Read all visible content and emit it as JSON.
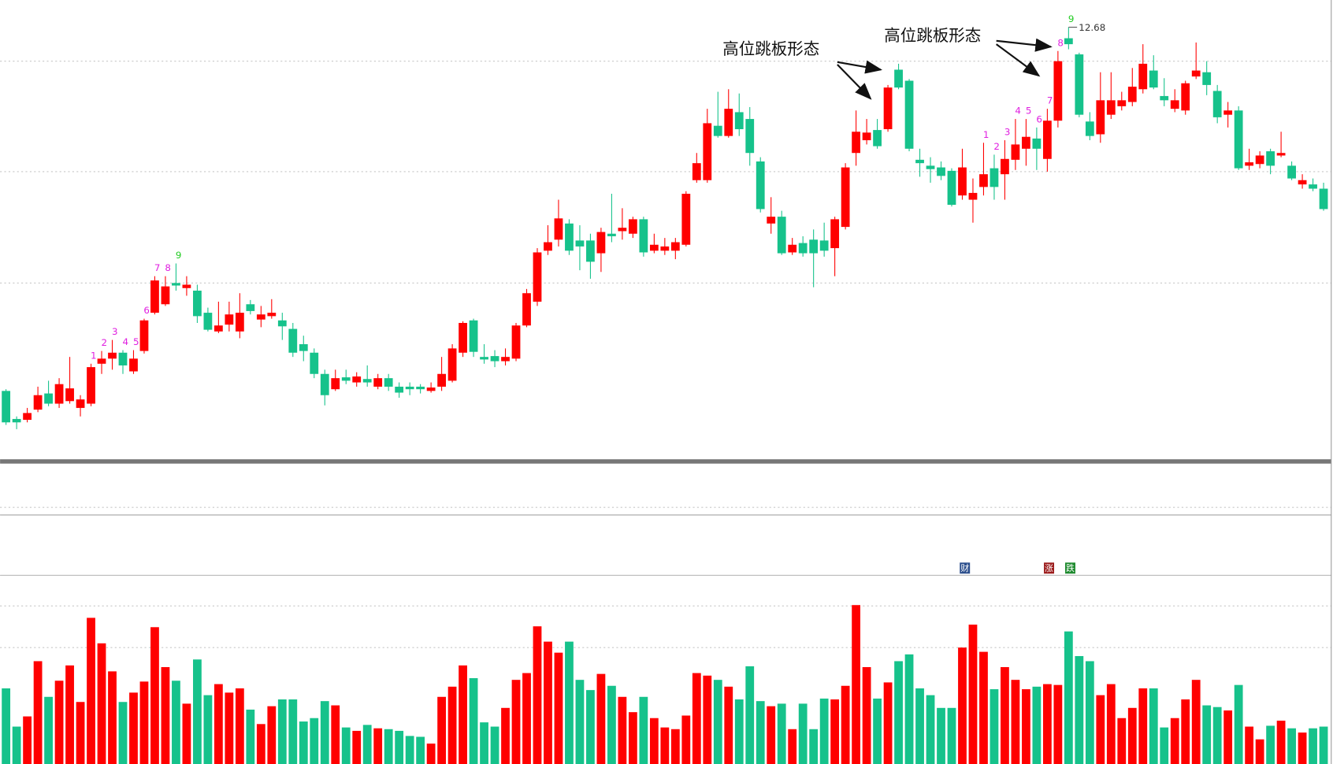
{
  "chart_data": {
    "type": "candlestick",
    "up_color": "#ff0000",
    "down_color": "#16c28b",
    "countdown_color": "#e020e0",
    "countdown_final_color": "#22cc22",
    "ylim": [
      7.5,
      13.0
    ],
    "volume_ylim": [
      0,
      200
    ],
    "annotations": [
      "高位跳板形态",
      "高位跳板形态"
    ],
    "markers": [
      "财",
      "涨",
      "跌"
    ],
    "candles": {
      "open": [
        8.4,
        8.07,
        8.06,
        8.18,
        8.37,
        8.25,
        8.28,
        8.2,
        8.25,
        8.72,
        8.78,
        8.85,
        8.63,
        8.87,
        9.32,
        9.42,
        9.67,
        9.61,
        9.58,
        9.32,
        9.1,
        9.18,
        9.1,
        9.42,
        9.24,
        9.28,
        9.23,
        9.13,
        8.95,
        8.85,
        8.6,
        8.42,
        8.56,
        8.5,
        8.54,
        8.45,
        8.55,
        8.45,
        8.45,
        8.45,
        8.4,
        8.45,
        8.52,
        8.85,
        9.23,
        8.8,
        8.81,
        8.75,
        8.78,
        9.17,
        9.45,
        10.05,
        10.18,
        10.37,
        10.17,
        10.17,
        10.02,
        10.25,
        10.28,
        10.25,
        10.42,
        10.05,
        10.05,
        10.05,
        10.12,
        10.88,
        10.88,
        11.52,
        11.4,
        11.68,
        11.6,
        11.1,
        10.37,
        10.45,
        10.03,
        10.14,
        10.18,
        10.17,
        10.08,
        10.33,
        11.2,
        11.35,
        11.47,
        11.48,
        12.18,
        12.05,
        11.12,
        11.05,
        11.03,
        10.99,
        10.7,
        10.65,
        10.8,
        11.02,
        10.95,
        11.12,
        11.25,
        11.37,
        11.13,
        11.58,
        12.55,
        12.36,
        11.57,
        11.42,
        11.65,
        11.75,
        11.8,
        11.95,
        12.17,
        11.87,
        11.72,
        11.7,
        12.1,
        12.15,
        11.93,
        11.65,
        11.7,
        11.05,
        11.07,
        11.22,
        11.17,
        11.05,
        10.83,
        10.83,
        10.78
      ],
      "high": [
        8.42,
        8.1,
        8.2,
        8.45,
        8.52,
        8.55,
        8.8,
        8.35,
        8.72,
        8.87,
        9.0,
        8.88,
        8.88,
        9.25,
        9.75,
        9.75,
        9.9,
        9.75,
        9.65,
        9.38,
        9.45,
        9.45,
        9.55,
        9.47,
        9.4,
        9.48,
        9.32,
        9.2,
        9.05,
        8.9,
        8.65,
        8.65,
        8.65,
        8.62,
        8.7,
        8.6,
        8.6,
        8.5,
        8.5,
        8.48,
        8.5,
        8.8,
        8.95,
        9.22,
        9.25,
        8.95,
        8.88,
        8.9,
        9.2,
        9.6,
        10.08,
        10.35,
        10.65,
        10.42,
        10.35,
        10.25,
        10.32,
        10.72,
        10.55,
        10.45,
        10.45,
        10.25,
        10.2,
        10.2,
        10.75,
        11.2,
        11.72,
        11.92,
        11.95,
        11.9,
        11.74,
        11.15,
        10.68,
        10.52,
        10.2,
        10.22,
        10.3,
        10.38,
        10.45,
        11.08,
        11.7,
        11.6,
        11.6,
        12.0,
        12.25,
        12.07,
        11.25,
        11.15,
        11.1,
        11.02,
        11.25,
        10.9,
        11.32,
        11.18,
        11.35,
        11.6,
        11.6,
        11.5,
        11.72,
        12.4,
        12.68,
        12.38,
        11.68,
        12.15,
        12.15,
        11.92,
        12.2,
        12.48,
        12.35,
        12.08,
        11.95,
        12.05,
        12.5,
        12.28,
        12.0,
        11.8,
        11.75,
        11.25,
        11.22,
        11.25,
        11.45,
        11.1,
        10.95,
        10.9,
        10.85
      ],
      "low": [
        8.0,
        7.95,
        8.03,
        8.15,
        8.22,
        8.2,
        8.25,
        8.1,
        8.22,
        8.6,
        8.65,
        8.6,
        8.6,
        8.84,
        9.3,
        9.4,
        9.58,
        9.52,
        9.2,
        9.1,
        9.08,
        9.1,
        9.02,
        9.3,
        9.15,
        9.25,
        9.0,
        8.8,
        8.75,
        8.55,
        8.23,
        8.4,
        8.48,
        8.45,
        8.45,
        8.42,
        8.4,
        8.32,
        8.35,
        8.37,
        8.38,
        8.4,
        8.5,
        8.8,
        8.8,
        8.72,
        8.68,
        8.7,
        8.75,
        9.15,
        9.4,
        10.0,
        10.1,
        10.0,
        9.82,
        9.72,
        9.8,
        10.15,
        10.18,
        10.2,
        9.98,
        10.02,
        10.0,
        9.95,
        10.1,
        10.85,
        10.85,
        11.38,
        11.38,
        11.4,
        11.05,
        10.5,
        10.25,
        10.0,
        10.0,
        9.98,
        9.62,
        9.98,
        9.75,
        10.3,
        11.05,
        11.3,
        11.25,
        11.45,
        11.95,
        11.22,
        10.92,
        10.85,
        10.88,
        10.57,
        10.65,
        10.38,
        10.7,
        10.65,
        10.65,
        11.0,
        11.05,
        11.0,
        10.98,
        11.5,
        12.42,
        11.62,
        11.35,
        11.32,
        11.6,
        11.7,
        11.75,
        11.9,
        11.95,
        11.75,
        11.68,
        11.65,
        12.07,
        11.88,
        11.55,
        11.5,
        11.0,
        11.0,
        11.02,
        10.95,
        11.15,
        10.88,
        10.78,
        10.75,
        10.52
      ],
      "close": [
        8.03,
        8.03,
        8.14,
        8.35,
        8.25,
        8.48,
        8.43,
        8.3,
        8.68,
        8.78,
        8.85,
        8.7,
        8.78,
        9.23,
        9.7,
        9.63,
        9.64,
        9.65,
        9.28,
        9.12,
        9.17,
        9.3,
        9.32,
        9.34,
        9.3,
        9.32,
        9.16,
        8.85,
        8.87,
        8.6,
        8.35,
        8.55,
        8.52,
        8.57,
        8.5,
        8.55,
        8.45,
        8.38,
        8.42,
        8.42,
        8.44,
        8.6,
        8.9,
        9.2,
        8.86,
        8.77,
        8.75,
        8.8,
        9.17,
        9.55,
        10.03,
        10.15,
        10.43,
        10.05,
        10.1,
        9.92,
        10.27,
        10.22,
        10.32,
        10.42,
        10.03,
        10.12,
        10.1,
        10.15,
        10.72,
        11.08,
        11.55,
        11.4,
        11.72,
        11.48,
        11.2,
        10.54,
        10.45,
        10.02,
        10.12,
        10.02,
        10.02,
        10.05,
        10.42,
        11.03,
        11.45,
        11.44,
        11.28,
        11.97,
        11.97,
        11.25,
        11.08,
        11.01,
        10.93,
        10.59,
        11.03,
        10.73,
        10.95,
        10.8,
        11.13,
        11.3,
        11.39,
        11.25,
        11.58,
        12.28,
        12.48,
        11.65,
        11.4,
        11.82,
        11.82,
        11.82,
        11.98,
        12.25,
        11.97,
        11.82,
        11.82,
        12.02,
        12.17,
        12.0,
        11.62,
        11.7,
        11.02,
        11.09,
        11.17,
        11.05,
        11.2,
        10.9,
        10.88,
        10.78,
        10.54
      ]
    },
    "volume": [
      89,
      44,
      56,
      121,
      79,
      98,
      116,
      73,
      172,
      142,
      109,
      73,
      84,
      97,
      161,
      114,
      98,
      71,
      123,
      81,
      94,
      84,
      89,
      64,
      47,
      68,
      76,
      76,
      50,
      54,
      74,
      69,
      43,
      39,
      46,
      42,
      41,
      39,
      33,
      32,
      24,
      79,
      91,
      116,
      101,
      49,
      44,
      66,
      99,
      107,
      162,
      144,
      131,
      144,
      99,
      87,
      106,
      92,
      79,
      61,
      79,
      54,
      43,
      41,
      57,
      107,
      104,
      99,
      91,
      76,
      115,
      74,
      68,
      71,
      41,
      71,
      41,
      77,
      76,
      92,
      187,
      114,
      77,
      96,
      121,
      129,
      89,
      81,
      66,
      66,
      137,
      164,
      132,
      88,
      114,
      99,
      88,
      91,
      94,
      93,
      156,
      127,
      121,
      81,
      94,
      54,
      66,
      89,
      89,
      43,
      54,
      76,
      99,
      69,
      67,
      63,
      93,
      44,
      29,
      45,
      51,
      42,
      37,
      42,
      44
    ],
    "countdown_labels": [
      null,
      null,
      null,
      null,
      null,
      null,
      null,
      null,
      "1",
      "2",
      "3",
      "4",
      "5",
      "6",
      "7",
      "8",
      "9",
      null,
      null,
      null,
      null,
      null,
      null,
      null,
      null,
      null,
      null,
      null,
      null,
      null,
      null,
      null,
      null,
      null,
      null,
      null,
      null,
      null,
      null,
      null,
      null,
      null,
      null,
      null,
      null,
      null,
      null,
      null,
      null,
      null,
      null,
      null,
      null,
      null,
      null,
      null,
      null,
      null,
      null,
      null,
      null,
      null,
      null,
      null,
      null,
      null,
      null,
      null,
      null,
      null,
      null,
      null,
      null,
      null,
      null,
      null,
      null,
      null,
      null,
      null,
      null,
      null,
      null,
      null,
      null,
      null,
      null,
      null,
      null,
      null,
      null,
      null,
      "1",
      "2",
      "3",
      "4",
      "5",
      "6",
      "7",
      "8",
      "9",
      null,
      null,
      null,
      null,
      null,
      null,
      null,
      null,
      null,
      null,
      null,
      null,
      null,
      null,
      null,
      null,
      null,
      null,
      null,
      null,
      null,
      null,
      null,
      null
    ]
  }
}
